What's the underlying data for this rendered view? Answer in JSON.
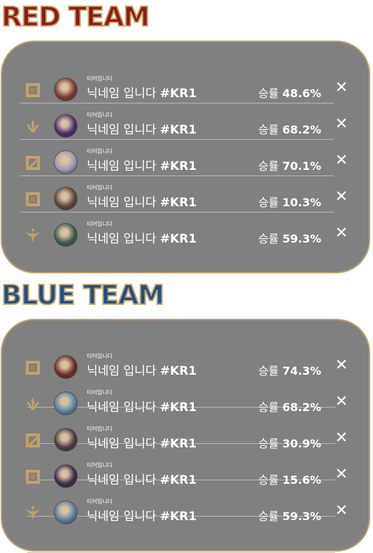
{
  "red_team": {
    "title": "RED TEAM",
    "players": [
      {
        "tier_icon": "square-emblem-icon",
        "tier_text": "티어입니다",
        "nickname": "닉네임 입니다",
        "tag": "#KR1",
        "winrate_label": "승률",
        "winrate": "48.6%",
        "avatar_color": "#7a3a34"
      },
      {
        "tier_icon": "claw-emblem-icon",
        "tier_text": "티어입니다",
        "nickname": "닉네임 입니다",
        "tag": "#KR1",
        "winrate_label": "승률",
        "winrate": "68.2%",
        "avatar_color": "#4b2c6e"
      },
      {
        "tier_icon": "slash-square-emblem-icon",
        "tier_text": "티어입니다",
        "nickname": "닉네임 입니다",
        "tag": "#KR1",
        "winrate_label": "승률",
        "winrate": "70.1%",
        "avatar_color": "#9a9ab4"
      },
      {
        "tier_icon": "square-emblem-icon",
        "tier_text": "티어입니다",
        "nickname": "닉네임 입니다",
        "tag": "#KR1",
        "winrate_label": "승률",
        "winrate": "10.3%",
        "avatar_color": "#5c4438"
      },
      {
        "tier_icon": "wing-emblem-icon",
        "tier_text": "티어입니다",
        "nickname": "닉네임 입니다",
        "tag": "#KR1",
        "winrate_label": "승률",
        "winrate": "59.3%",
        "avatar_color": "#3e5a4e"
      }
    ]
  },
  "blue_team": {
    "title": "BLUE TEAM",
    "players": [
      {
        "tier_icon": "square-emblem-icon",
        "tier_text": "티어입니다",
        "nickname": "닉네임 입니다",
        "tag": "#KR1",
        "winrate_label": "승률",
        "winrate": "74.3%",
        "avatar_color": "#6e2a26"
      },
      {
        "tier_icon": "claw-emblem-icon",
        "tier_text": "티어입니다",
        "nickname": "닉네임 입니다",
        "tag": "#KR1",
        "winrate_label": "승률",
        "winrate": "68.2%",
        "avatar_color": "#5a86a8"
      },
      {
        "tier_icon": "slash-square-emblem-icon",
        "tier_text": "티어입니다",
        "nickname": "닉네임 입니다",
        "tag": "#KR1",
        "winrate_label": "승률",
        "winrate": "30.9%",
        "avatar_color": "#4e3a44"
      },
      {
        "tier_icon": "square-emblem-icon",
        "tier_text": "티어입니다",
        "nickname": "닉네임 입니다",
        "tag": "#KR1",
        "winrate_label": "승률",
        "winrate": "15.6%",
        "avatar_color": "#3a2c4a"
      },
      {
        "tier_icon": "wing-emblem-icon",
        "tier_text": "티어입니다",
        "nickname": "닉네임 입니다",
        "tag": "#KR1",
        "winrate_label": "승률",
        "winrate": "59.3%",
        "avatar_color": "#5c7fa2"
      }
    ]
  },
  "colors": {
    "gold": "#c4a168",
    "panel": "#808080",
    "red": "#8c1b14",
    "blue": "#1f4e86"
  },
  "close_icon": "close-icon"
}
